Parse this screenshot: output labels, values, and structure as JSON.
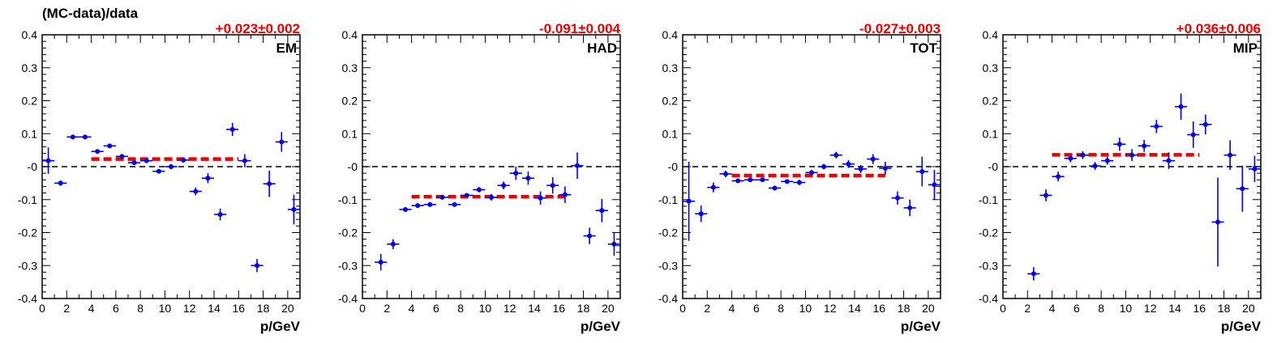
{
  "figure": {
    "ylabel": "(MC-data)/data"
  },
  "colors": {
    "points": "#0000ee",
    "fit": "#ee0000",
    "zero_line": "#000000",
    "fit_text": "#ee0000"
  },
  "chart_data": [
    {
      "type": "scatter",
      "label": "EM",
      "fit_text": "+0.023±0.002",
      "fit": {
        "value": 0.023,
        "x_range": [
          4,
          16
        ]
      },
      "xlabel": "p/GeV",
      "xlim": [
        0,
        21
      ],
      "ylim": [
        -0.4,
        0.4
      ],
      "x_ticks": [
        "0",
        "2",
        "4",
        "6",
        "8",
        "10",
        "12",
        "14",
        "16",
        "18",
        "20"
      ],
      "y_ticks": [
        "-0.4",
        "-0.3",
        "-0.2",
        "-0.1",
        "-0",
        "0.1",
        "0.2",
        "0.3",
        "0.4"
      ],
      "points": [
        {
          "x": 0.5,
          "y": 0.018,
          "err": 0.04
        },
        {
          "x": 1.5,
          "y": -0.05,
          "err": 0.008
        },
        {
          "x": 2.5,
          "y": 0.09,
          "err": 0.006
        },
        {
          "x": 3.5,
          "y": 0.09,
          "err": 0.006
        },
        {
          "x": 4.5,
          "y": 0.046,
          "err": 0.006
        },
        {
          "x": 5.5,
          "y": 0.063,
          "err": 0.006
        },
        {
          "x": 6.5,
          "y": 0.031,
          "err": 0.006
        },
        {
          "x": 7.5,
          "y": 0.012,
          "err": 0.006
        },
        {
          "x": 8.5,
          "y": 0.018,
          "err": 0.006
        },
        {
          "x": 9.5,
          "y": -0.014,
          "err": 0.006
        },
        {
          "x": 10.5,
          "y": 0.0,
          "err": 0.008
        },
        {
          "x": 11.5,
          "y": 0.02,
          "err": 0.008
        },
        {
          "x": 12.5,
          "y": -0.075,
          "err": 0.012
        },
        {
          "x": 13.5,
          "y": -0.035,
          "err": 0.015
        },
        {
          "x": 14.5,
          "y": -0.145,
          "err": 0.018
        },
        {
          "x": 15.5,
          "y": 0.113,
          "err": 0.02
        },
        {
          "x": 16.5,
          "y": 0.018,
          "err": 0.02
        },
        {
          "x": 17.5,
          "y": -0.3,
          "err": 0.02
        },
        {
          "x": 18.5,
          "y": -0.052,
          "err": 0.04
        },
        {
          "x": 19.5,
          "y": 0.075,
          "err": 0.03
        },
        {
          "x": 20.5,
          "y": -0.13,
          "err": 0.045
        }
      ]
    },
    {
      "type": "scatter",
      "label": "HAD",
      "fit_text": "-0.091±0.004",
      "fit": {
        "value": -0.091,
        "x_range": [
          4,
          16.5
        ]
      },
      "xlabel": "p/GeV",
      "xlim": [
        0,
        21
      ],
      "ylim": [
        -0.4,
        0.4
      ],
      "x_ticks": [
        "0",
        "2",
        "4",
        "6",
        "8",
        "10",
        "12",
        "14",
        "16",
        "18",
        "20"
      ],
      "y_ticks": [
        "-0.4",
        "-0.3",
        "-0.2",
        "-0.1",
        "-0",
        "0.1",
        "0.2",
        "0.3",
        "0.4"
      ],
      "points": [
        {
          "x": 1.5,
          "y": -0.29,
          "err": 0.025
        },
        {
          "x": 2.5,
          "y": -0.235,
          "err": 0.015
        },
        {
          "x": 3.5,
          "y": -0.13,
          "err": 0.006
        },
        {
          "x": 4.5,
          "y": -0.118,
          "err": 0.006
        },
        {
          "x": 5.5,
          "y": -0.115,
          "err": 0.006
        },
        {
          "x": 6.5,
          "y": -0.093,
          "err": 0.006
        },
        {
          "x": 7.5,
          "y": -0.115,
          "err": 0.006
        },
        {
          "x": 8.5,
          "y": -0.087,
          "err": 0.006
        },
        {
          "x": 9.5,
          "y": -0.07,
          "err": 0.008
        },
        {
          "x": 10.5,
          "y": -0.093,
          "err": 0.01
        },
        {
          "x": 11.5,
          "y": -0.057,
          "err": 0.012
        },
        {
          "x": 12.5,
          "y": -0.02,
          "err": 0.02
        },
        {
          "x": 13.5,
          "y": -0.035,
          "err": 0.02
        },
        {
          "x": 14.5,
          "y": -0.095,
          "err": 0.02
        },
        {
          "x": 15.5,
          "y": -0.057,
          "err": 0.025
        },
        {
          "x": 16.5,
          "y": -0.085,
          "err": 0.025
        },
        {
          "x": 17.5,
          "y": 0.003,
          "err": 0.04
        },
        {
          "x": 18.5,
          "y": -0.21,
          "err": 0.025
        },
        {
          "x": 19.5,
          "y": -0.133,
          "err": 0.035
        },
        {
          "x": 20.5,
          "y": -0.235,
          "err": 0.035
        }
      ]
    },
    {
      "type": "scatter",
      "label": "TOT",
      "fit_text": "-0.027±0.003",
      "fit": {
        "value": -0.027,
        "x_range": [
          4,
          16.5
        ]
      },
      "xlabel": "p/GeV",
      "xlim": [
        0,
        21
      ],
      "ylim": [
        -0.4,
        0.4
      ],
      "x_ticks": [
        "0",
        "2",
        "4",
        "6",
        "8",
        "10",
        "12",
        "14",
        "16",
        "18",
        "20"
      ],
      "y_ticks": [
        "-0.4",
        "-0.3",
        "-0.2",
        "-0.1",
        "-0",
        "0.1",
        "0.2",
        "0.3",
        "0.4"
      ],
      "points": [
        {
          "x": 0.5,
          "y": -0.105,
          "err": 0.12
        },
        {
          "x": 1.5,
          "y": -0.143,
          "err": 0.025
        },
        {
          "x": 2.5,
          "y": -0.063,
          "err": 0.015
        },
        {
          "x": 3.5,
          "y": -0.022,
          "err": 0.01
        },
        {
          "x": 4.5,
          "y": -0.043,
          "err": 0.006
        },
        {
          "x": 5.5,
          "y": -0.04,
          "err": 0.006
        },
        {
          "x": 6.5,
          "y": -0.04,
          "err": 0.006
        },
        {
          "x": 7.5,
          "y": -0.065,
          "err": 0.006
        },
        {
          "x": 8.5,
          "y": -0.045,
          "err": 0.006
        },
        {
          "x": 9.5,
          "y": -0.048,
          "err": 0.008
        },
        {
          "x": 10.5,
          "y": -0.018,
          "err": 0.008
        },
        {
          "x": 11.5,
          "y": 0.0,
          "err": 0.008
        },
        {
          "x": 12.5,
          "y": 0.035,
          "err": 0.01
        },
        {
          "x": 13.5,
          "y": 0.008,
          "err": 0.012
        },
        {
          "x": 14.5,
          "y": -0.007,
          "err": 0.012
        },
        {
          "x": 15.5,
          "y": 0.023,
          "err": 0.015
        },
        {
          "x": 16.5,
          "y": -0.005,
          "err": 0.02
        },
        {
          "x": 17.5,
          "y": -0.095,
          "err": 0.02
        },
        {
          "x": 18.5,
          "y": -0.125,
          "err": 0.025
        },
        {
          "x": 19.5,
          "y": -0.015,
          "err": 0.045
        },
        {
          "x": 20.5,
          "y": -0.055,
          "err": 0.045
        }
      ]
    },
    {
      "type": "scatter",
      "label": "MIP",
      "fit_text": "+0.036±0.006",
      "fit": {
        "value": 0.036,
        "x_range": [
          4,
          16
        ]
      },
      "xlabel": "p/GeV",
      "xlim": [
        0,
        21
      ],
      "ylim": [
        -0.4,
        0.4
      ],
      "x_ticks": [
        "0",
        "2",
        "4",
        "6",
        "8",
        "10",
        "12",
        "14",
        "16",
        "18",
        "20"
      ],
      "y_ticks": [
        "-0.4",
        "-0.3",
        "-0.2",
        "-0.1",
        "-0",
        "0.1",
        "0.2",
        "0.3",
        "0.4"
      ],
      "points": [
        {
          "x": 2.5,
          "y": -0.325,
          "err": 0.02
        },
        {
          "x": 3.5,
          "y": -0.087,
          "err": 0.018
        },
        {
          "x": 4.5,
          "y": -0.03,
          "err": 0.015
        },
        {
          "x": 5.5,
          "y": 0.025,
          "err": 0.012
        },
        {
          "x": 6.5,
          "y": 0.035,
          "err": 0.012
        },
        {
          "x": 7.5,
          "y": 0.002,
          "err": 0.012
        },
        {
          "x": 8.5,
          "y": 0.018,
          "err": 0.012
        },
        {
          "x": 9.5,
          "y": 0.068,
          "err": 0.02
        },
        {
          "x": 10.5,
          "y": 0.035,
          "err": 0.018
        },
        {
          "x": 11.5,
          "y": 0.063,
          "err": 0.018
        },
        {
          "x": 12.5,
          "y": 0.122,
          "err": 0.02
        },
        {
          "x": 13.5,
          "y": 0.018,
          "err": 0.025
        },
        {
          "x": 14.5,
          "y": 0.182,
          "err": 0.04
        },
        {
          "x": 15.5,
          "y": 0.097,
          "err": 0.04
        },
        {
          "x": 16.5,
          "y": 0.128,
          "err": 0.03
        },
        {
          "x": 17.5,
          "y": -0.168,
          "err": 0.135
        },
        {
          "x": 18.5,
          "y": 0.035,
          "err": 0.045
        },
        {
          "x": 19.5,
          "y": -0.067,
          "err": 0.07
        },
        {
          "x": 20.5,
          "y": -0.007,
          "err": 0.04
        }
      ]
    }
  ]
}
